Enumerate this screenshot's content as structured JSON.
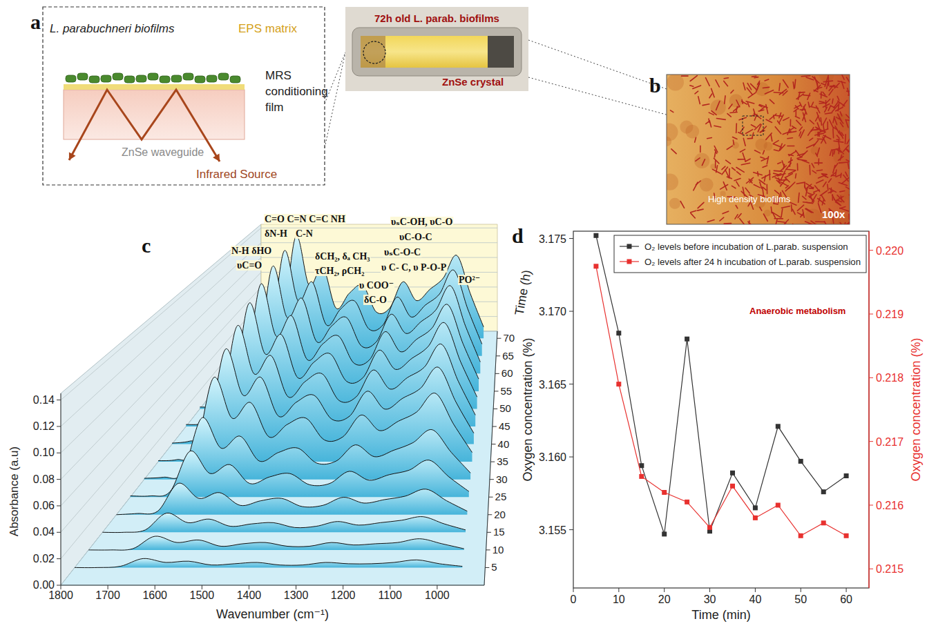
{
  "panel_labels": [
    "a",
    "b",
    "c",
    "d"
  ],
  "diagram": {
    "title": "L. parabuchneri biofilms",
    "eps": "EPS matrix",
    "film": "MRS conditioning film",
    "waveguide": "ZnSe waveguide",
    "source": "Infrared Source"
  },
  "photo": {
    "title": "72h old L. parab. biofilms",
    "crystal": "ZnSe crystal"
  },
  "micrograph": {
    "label": "High density biofilms",
    "magnification": "100x"
  },
  "chart_data": [
    {
      "type": "waterfall",
      "xlabel": "Wavenumber (cm⁻¹)",
      "ylabel": "Absorbance (a.u)",
      "zlabel": "Time (h)",
      "grid": true,
      "x": [
        1800,
        1750,
        1700,
        1650,
        1600,
        1550,
        1500,
        1450,
        1400,
        1350,
        1300,
        1250,
        1200,
        1150,
        1100,
        1050,
        1000,
        950
      ],
      "xlim": [
        1800,
        900
      ],
      "xticks": [
        1800,
        1700,
        1600,
        1500,
        1400,
        1300,
        1200,
        1100,
        1000
      ],
      "ylim": [
        0,
        0.145
      ],
      "yticks": [
        {
          "value": 0,
          "label": "0.00"
        },
        0.02,
        0.04,
        0.06,
        0.08,
        {
          "value": 0.1,
          "label": "0.10"
        },
        0.12,
        0.14
      ],
      "zlim": [
        0,
        72
      ],
      "zticks": [
        5,
        10,
        15,
        20,
        25,
        30,
        35,
        40,
        45,
        50,
        55,
        60,
        65,
        70
      ],
      "spectra": [
        {
          "time": 5,
          "values": [
            0.0,
            0.0,
            0.001,
            0.007,
            0.004,
            0.005,
            0.002,
            0.003,
            0.004,
            0.002,
            0.002,
            0.004,
            0.003,
            0.003,
            0.004,
            0.006,
            0.003,
            0.001
          ]
        },
        {
          "time": 10,
          "values": [
            0.0,
            0.0,
            0.001,
            0.011,
            0.006,
            0.008,
            0.003,
            0.005,
            0.006,
            0.003,
            0.003,
            0.006,
            0.004,
            0.005,
            0.006,
            0.009,
            0.005,
            0.001
          ]
        },
        {
          "time": 15,
          "values": [
            0.0,
            0.0,
            0.002,
            0.016,
            0.008,
            0.011,
            0.005,
            0.007,
            0.008,
            0.004,
            0.005,
            0.009,
            0.006,
            0.008,
            0.01,
            0.013,
            0.007,
            0.002
          ]
        },
        {
          "time": 20,
          "values": [
            0.0,
            0.001,
            0.003,
            0.027,
            0.014,
            0.019,
            0.008,
            0.012,
            0.014,
            0.007,
            0.008,
            0.015,
            0.01,
            0.013,
            0.016,
            0.022,
            0.012,
            0.003
          ]
        },
        {
          "time": 25,
          "values": [
            0.001,
            0.001,
            0.005,
            0.041,
            0.021,
            0.029,
            0.012,
            0.018,
            0.021,
            0.011,
            0.012,
            0.023,
            0.015,
            0.02,
            0.024,
            0.033,
            0.018,
            0.005
          ]
        },
        {
          "time": 30,
          "values": [
            0.001,
            0.002,
            0.006,
            0.057,
            0.029,
            0.04,
            0.017,
            0.025,
            0.029,
            0.015,
            0.017,
            0.032,
            0.021,
            0.027,
            0.034,
            0.046,
            0.025,
            0.006
          ]
        },
        {
          "time": 35,
          "values": [
            0.001,
            0.002,
            0.009,
            0.081,
            0.042,
            0.057,
            0.024,
            0.036,
            0.042,
            0.021,
            0.024,
            0.045,
            0.03,
            0.039,
            0.048,
            0.066,
            0.036,
            0.009
          ]
        },
        {
          "time": 40,
          "values": [
            0.001,
            0.003,
            0.011,
            0.095,
            0.049,
            0.067,
            0.028,
            0.042,
            0.049,
            0.025,
            0.028,
            0.053,
            0.035,
            0.046,
            0.056,
            0.077,
            0.042,
            0.011
          ]
        },
        {
          "time": 45,
          "values": [
            0.002,
            0.003,
            0.012,
            0.105,
            0.055,
            0.074,
            0.031,
            0.047,
            0.055,
            0.027,
            0.031,
            0.059,
            0.039,
            0.051,
            0.062,
            0.086,
            0.047,
            0.012
          ]
        },
        {
          "time": 50,
          "values": [
            0.002,
            0.003,
            0.013,
            0.115,
            0.06,
            0.081,
            0.034,
            0.051,
            0.06,
            0.03,
            0.034,
            0.064,
            0.043,
            0.055,
            0.068,
            0.094,
            0.051,
            0.013
          ]
        },
        {
          "time": 55,
          "values": [
            0.002,
            0.004,
            0.014,
            0.122,
            0.063,
            0.086,
            0.036,
            0.054,
            0.063,
            0.032,
            0.036,
            0.068,
            0.045,
            0.059,
            0.072,
            0.099,
            0.054,
            0.014
          ]
        },
        {
          "time": 60,
          "values": [
            0.002,
            0.004,
            0.014,
            0.128,
            0.067,
            0.09,
            0.038,
            0.057,
            0.067,
            0.033,
            0.038,
            0.071,
            0.048,
            0.062,
            0.076,
            0.105,
            0.057,
            0.014
          ]
        },
        {
          "time": 65,
          "values": [
            0.002,
            0.004,
            0.015,
            0.132,
            0.069,
            0.093,
            0.039,
            0.059,
            0.069,
            0.034,
            0.039,
            0.074,
            0.049,
            0.064,
            0.078,
            0.108,
            0.059,
            0.015
          ]
        },
        {
          "time": 70,
          "values": [
            0.002,
            0.004,
            0.015,
            0.135,
            0.07,
            0.095,
            0.04,
            0.06,
            0.07,
            0.035,
            0.04,
            0.075,
            0.05,
            0.065,
            0.08,
            0.11,
            0.06,
            0.015
          ]
        }
      ],
      "annotations": [
        "C=O C=N C=C NH",
        "δN-H",
        "C-N",
        "N-H δHO",
        "υC=O",
        "δCH₂, δₐ CH₃",
        "τCH₂, ρCH₂",
        "υ COO⁻",
        "δC-O",
        "υₛC-OH, υC-O",
        "υC-O-C",
        "υₛC-O-C",
        "υ C- C, υ P-O-P",
        "PO²⁻"
      ]
    },
    {
      "type": "line",
      "xlabel": "Time (min)",
      "ylabel": "Oxygen concentration (%)",
      "y2label": "Oxygen concentration (%)",
      "grid": false,
      "legend": "upper right",
      "marker": "square",
      "line_style": "solid",
      "x": [
        5,
        10,
        15,
        20,
        25,
        30,
        35,
        40,
        45,
        50,
        55,
        60
      ],
      "xlim": [
        0,
        65
      ],
      "xticks": [
        0,
        10,
        20,
        30,
        40,
        50,
        60
      ],
      "ylim": [
        3.151,
        3.1755
      ],
      "yticks": [
        3.155,
        {
          "value": 3.16,
          "label": "3.160"
        },
        3.165,
        {
          "value": 3.17,
          "label": "3.170"
        },
        3.175
      ],
      "y2lim": [
        0.2147,
        0.2203
      ],
      "y2ticks": [
        0.215,
        0.216,
        0.217,
        0.218,
        0.219,
        {
          "value": 0.22,
          "label": "0.220"
        }
      ],
      "series": [
        {
          "name": "O₂ levels before incubation of L.parab. suspension",
          "color": "#333333",
          "values": [
            3.1752,
            3.1685,
            3.1594,
            3.1547,
            3.1681,
            3.1549,
            3.1589,
            3.1565,
            3.1621,
            3.1597,
            3.1576,
            3.1587
          ]
        },
        {
          "name": "O₂ levels after 24 h incubation of L.parab. suspension",
          "color": "#e8312f",
          "axis": "y2",
          "values": [
            0.21975,
            0.2179,
            0.21645,
            0.2162,
            0.21605,
            0.21565,
            0.2163,
            0.2158,
            0.216,
            0.21552,
            0.21572,
            0.21552
          ]
        }
      ],
      "annotations": [
        "Anaerobic metabolism"
      ]
    }
  ]
}
